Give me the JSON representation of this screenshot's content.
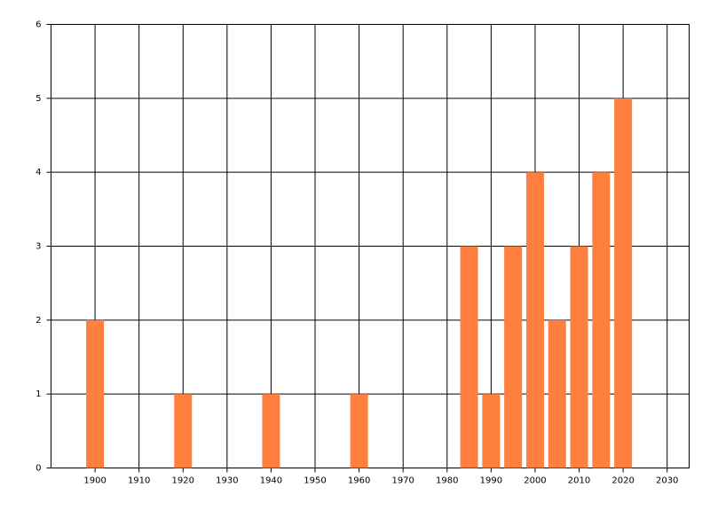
{
  "chart_data": {
    "type": "bar",
    "x": [
      1900,
      1920,
      1940,
      1960,
      1985,
      1990,
      1995,
      2000,
      2005,
      2010,
      2015,
      2020
    ],
    "values": [
      2,
      1,
      1,
      1,
      3,
      1,
      3,
      4,
      2,
      3,
      4,
      5
    ],
    "color": "#ff7f3f",
    "xlim": [
      1890,
      2035
    ],
    "xticks": [
      1900,
      1910,
      1920,
      1930,
      1940,
      1950,
      1960,
      1970,
      1980,
      1990,
      2000,
      2010,
      2020,
      2030
    ],
    "ylim": [
      0,
      6
    ],
    "yticks": [
      0,
      1,
      2,
      3,
      4,
      5,
      6
    ],
    "grid": true
  }
}
